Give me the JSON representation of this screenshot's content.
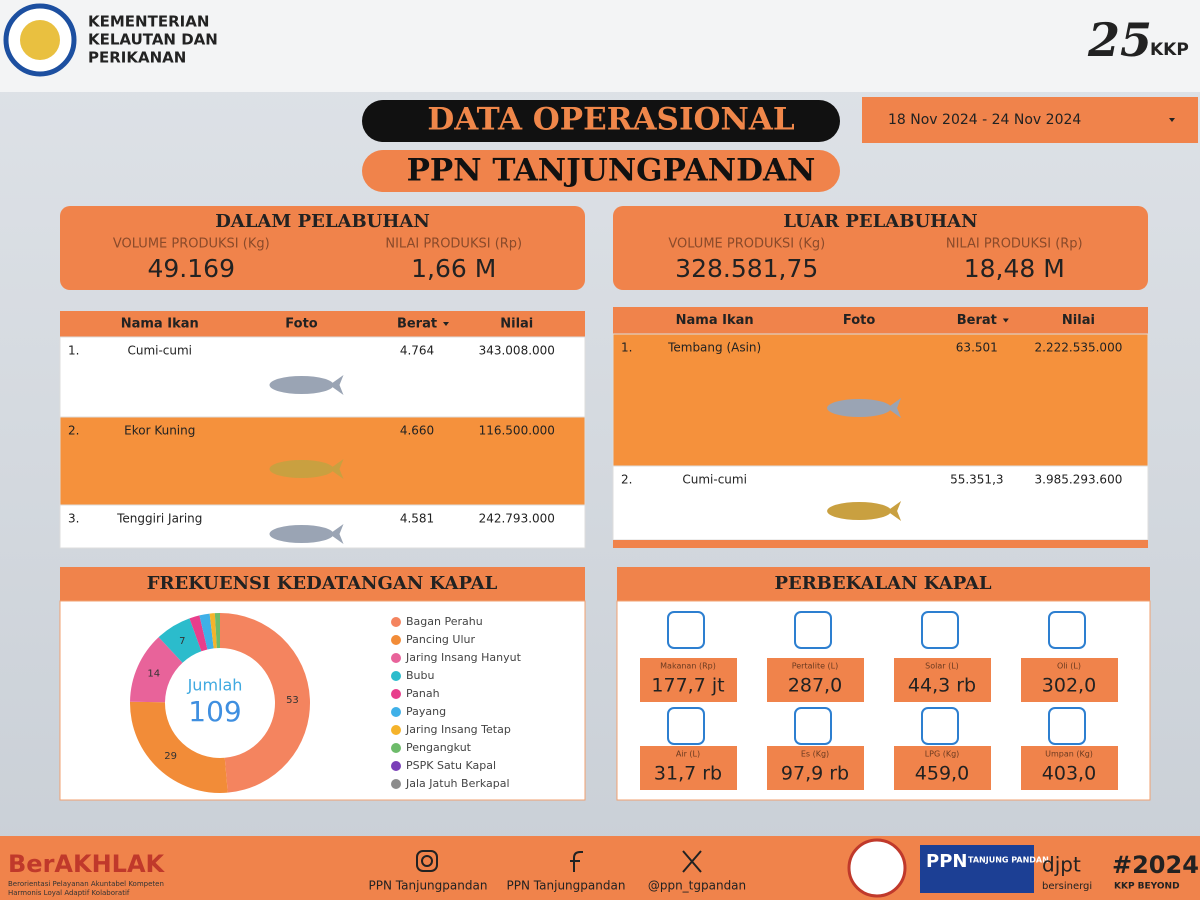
{
  "header": {
    "ministry": [
      "KEMENTERIAN",
      "KELAUTAN DAN",
      "PERIKANAN"
    ],
    "anniversary": "25",
    "brand": "KKP"
  },
  "title": "DATA OPERASIONAL",
  "subtitle": "PPN TANJUNGPANDAN",
  "date_range": "18 Nov 2024 - 24 Nov 2024",
  "dalam": {
    "title": "DALAM PELABUHAN",
    "volume_label": "VOLUME PRODUKSI (Kg)",
    "volume": "49.169",
    "nilai_label": "NILAI PRODUKSI (Rp)",
    "nilai": "1,66 M",
    "columns": [
      "Nama Ikan",
      "Foto",
      "Berat",
      "Nilai"
    ],
    "rows": [
      [
        "1.",
        "Cumi-cumi",
        "4.764",
        "343.008.000"
      ],
      [
        "2.",
        "Ekor Kuning",
        "4.660",
        "116.500.000"
      ],
      [
        "3.",
        "Tenggiri Jaring",
        "4.581",
        "242.793.000"
      ]
    ]
  },
  "luar": {
    "title": "LUAR PELABUHAN",
    "volume_label": "VOLUME PRODUKSI (Kg)",
    "volume": "328.581,75",
    "nilai_label": "NILAI PRODUKSI (Rp)",
    "nilai": "18,48 M",
    "columns": [
      "Nama Ikan",
      "Foto",
      "Berat",
      "Nilai"
    ],
    "rows": [
      [
        "1.",
        "Tembang (Asin)",
        "63.501",
        "2.222.535.000"
      ],
      [
        "2.",
        "Cumi-cumi",
        "55.351,3",
        "3.985.293.600"
      ]
    ]
  },
  "chart_data": {
    "type": "pie",
    "title": "FREKUENSI KEDATANGAN KAPAL",
    "categories": [
      "Bagan Perahu",
      "Pancing Ulur",
      "Jaring Insang Hanyut",
      "Bubu",
      "Panah",
      "Payang",
      "Jaring Insang Tetap",
      "Pengangkut",
      "PSPK Satu Kapal",
      "Jala Jatuh Berkapal"
    ],
    "values": [
      53,
      29,
      14,
      7,
      2,
      2,
      1,
      1,
      0,
      0
    ],
    "colors": [
      "#f4845f",
      "#f28c38",
      "#e8639a",
      "#2bbccc",
      "#e83e8c",
      "#3fb0e8",
      "#f5b32b",
      "#6dbb6a",
      "#7a3fb8",
      "#8c8c8c"
    ],
    "center_label": "Jumlah",
    "total": 109
  },
  "perbekalan": {
    "title": "PERBEKALAN KAPAL",
    "items": [
      {
        "label": "Makanan (Rp)",
        "value": "177,7 jt"
      },
      {
        "label": "Pertalite (L)",
        "value": "287,0"
      },
      {
        "label": "Solar (L)",
        "value": "44,3 rb"
      },
      {
        "label": "Oli (L)",
        "value": "302,0"
      },
      {
        "label": "Air (L)",
        "value": "31,7 rb"
      },
      {
        "label": "Es (Kg)",
        "value": "97,9 rb"
      },
      {
        "label": "LPG (Kg)",
        "value": "459,0"
      },
      {
        "label": "Umpan (Kg)",
        "value": "403,0"
      }
    ]
  },
  "footer": {
    "berakhlak": "BerAKHLAK",
    "berakhlak_sub": [
      "Berorientasi Pelayanan Akuntabel Kompeten",
      "Harmonis Loyal Adaptif Kolaboratif"
    ],
    "instagram": "PPN Tanjungpandan",
    "facebook": "PPN Tanjungpandan",
    "x": "@ppn_tgpandan",
    "ppn": "PPN",
    "ppn_name": "TANJUNG PANDAN",
    "djpt": "djpt",
    "djpt_sub": "bersinergi",
    "hashtag": "#2024",
    "beyond": "KKP BEYOND"
  }
}
